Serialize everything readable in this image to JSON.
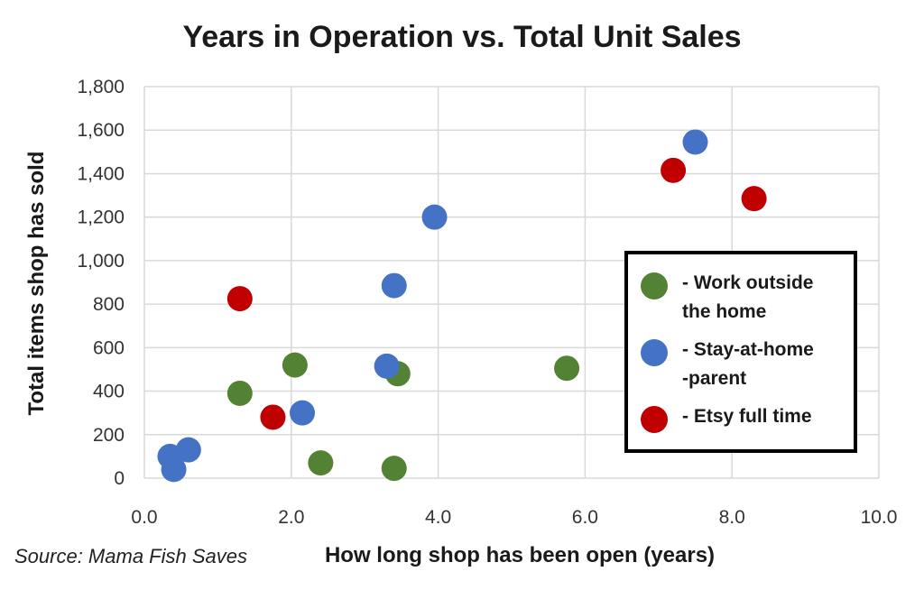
{
  "chart_data": {
    "type": "scatter",
    "title": "Years in Operation vs. Total Unit Sales",
    "xlabel": "How long shop has been open (years)",
    "ylabel": "Total items shop has sold",
    "xlim": [
      0,
      10
    ],
    "ylim": [
      0,
      1800
    ],
    "x_ticks": [
      "0.0",
      "2.0",
      "4.0",
      "6.0",
      "8.0",
      "10.0"
    ],
    "y_ticks": [
      "0",
      "200",
      "400",
      "600",
      "800",
      "1,000",
      "1,200",
      "1,400",
      "1,600",
      "1,800"
    ],
    "grid": true,
    "legend_position": "right",
    "series": [
      {
        "name": "- Work outside the home",
        "color": "#548235",
        "points": [
          {
            "x": 1.3,
            "y": 390
          },
          {
            "x": 2.05,
            "y": 520
          },
          {
            "x": 2.4,
            "y": 70
          },
          {
            "x": 3.4,
            "y": 45
          },
          {
            "x": 3.45,
            "y": 480
          },
          {
            "x": 5.75,
            "y": 505
          }
        ]
      },
      {
        "name": "- Stay-at-home -parent",
        "color": "#4472c4",
        "points": [
          {
            "x": 0.35,
            "y": 100
          },
          {
            "x": 0.4,
            "y": 40
          },
          {
            "x": 0.6,
            "y": 130
          },
          {
            "x": 2.15,
            "y": 300
          },
          {
            "x": 3.3,
            "y": 515
          },
          {
            "x": 3.4,
            "y": 885
          },
          {
            "x": 3.95,
            "y": 1200
          },
          {
            "x": 7.5,
            "y": 1545
          }
        ]
      },
      {
        "name": "- Etsy full time",
        "color": "#c00000",
        "points": [
          {
            "x": 1.3,
            "y": 825
          },
          {
            "x": 1.75,
            "y": 280
          },
          {
            "x": 7.2,
            "y": 1415
          },
          {
            "x": 8.3,
            "y": 1285
          }
        ]
      }
    ]
  },
  "legend": {
    "items": [
      {
        "label_line1": "- Work outside",
        "label_line2": "the home",
        "color": "#548235"
      },
      {
        "label_line1": "- Stay-at-home",
        "label_line2": "-parent",
        "color": "#4472c4"
      },
      {
        "label_line1": "- Etsy full time",
        "label_line2": "",
        "color": "#c00000"
      }
    ]
  },
  "source": "Source: Mama Fish Saves"
}
